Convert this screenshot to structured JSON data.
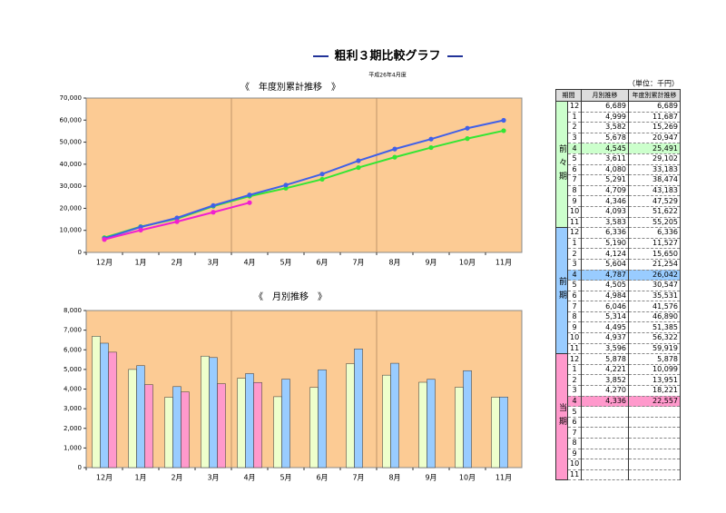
{
  "title": "粗利３期比較グラフ",
  "subtitle": "平成26年4月度",
  "chart_data": [
    {
      "type": "line",
      "title": "《　年度別累計推移　》",
      "categories": [
        "12月",
        "1月",
        "2月",
        "3月",
        "4月",
        "5月",
        "6月",
        "7月",
        "8月",
        "9月",
        "10月",
        "11月"
      ],
      "ylim": [
        0,
        70000
      ],
      "yticks": [
        0,
        {
          "value": 10000,
          "label": "10,000"
        },
        {
          "value": 20000,
          "label": "20,000"
        },
        {
          "value": 30000,
          "label": "30,000"
        },
        {
          "value": 40000,
          "label": "40,000"
        },
        {
          "value": 50000,
          "label": "50,000"
        },
        {
          "value": 60000,
          "label": "60,000"
        },
        {
          "value": 70000,
          "label": "70,000"
        }
      ],
      "series": [
        {
          "color": "#33e633",
          "values": [
            6689,
            11687,
            15269,
            20947,
            25491,
            29102,
            33183,
            38474,
            43183,
            47529,
            51622,
            55205
          ]
        },
        {
          "color": "#4060e8",
          "values": [
            6336,
            11527,
            15650,
            21254,
            26042,
            30547,
            35531,
            41576,
            46890,
            51385,
            56322,
            59919
          ]
        },
        {
          "color": "#f020d0",
          "values": [
            5878,
            10099,
            13951,
            18221,
            22557,
            null,
            null,
            null,
            null,
            null,
            null,
            null
          ]
        }
      ]
    },
    {
      "type": "bar",
      "title": "《　月別推移　》",
      "categories": [
        "12月",
        "1月",
        "2月",
        "3月",
        "4月",
        "5月",
        "6月",
        "7月",
        "8月",
        "9月",
        "10月",
        "11月"
      ],
      "ylim": [
        0,
        8000
      ],
      "yticks": [
        0,
        {
          "value": 1000,
          "label": "1,000"
        },
        {
          "value": 2000,
          "label": "2,000"
        },
        {
          "value": 3000,
          "label": "3,000"
        },
        {
          "value": 4000,
          "label": "4,000"
        },
        {
          "value": 5000,
          "label": "5,000"
        },
        {
          "value": 6000,
          "label": "6,000"
        },
        {
          "value": 7000,
          "label": "7,000"
        },
        {
          "value": 8000,
          "label": "8,000"
        }
      ],
      "series": [
        {
          "color": "#eeffcc",
          "values": [
            6689,
            4999,
            3582,
            5678,
            4545,
            3611,
            4080,
            5291,
            4709,
            4346,
            4093,
            3583
          ]
        },
        {
          "color": "#99ccff",
          "values": [
            6336,
            5190,
            4124,
            5604,
            4787,
            4505,
            4984,
            6046,
            5314,
            4495,
            4937,
            3596
          ]
        },
        {
          "color": "#ff99cc",
          "values": [
            5878,
            4221,
            3852,
            4270,
            4336,
            null,
            null,
            null,
            null,
            null,
            null,
            null
          ]
        }
      ]
    }
  ],
  "table": {
    "unit": "（単位：千円）",
    "header": [
      "期間",
      "月別推移",
      "年度別累計推移"
    ],
    "groups": [
      {
        "label": "前々期",
        "color": "#ccffcc",
        "highlight": 4,
        "rows": [
          [
            "12",
            "6,689",
            "6,689"
          ],
          [
            "1",
            "4,999",
            "11,687"
          ],
          [
            "2",
            "3,582",
            "15,269"
          ],
          [
            "3",
            "5,678",
            "20,947"
          ],
          [
            "4",
            "4,545",
            "25,491"
          ],
          [
            "5",
            "3,611",
            "29,102"
          ],
          [
            "6",
            "4,080",
            "33,183"
          ],
          [
            "7",
            "5,291",
            "38,474"
          ],
          [
            "8",
            "4,709",
            "43,183"
          ],
          [
            "9",
            "4,346",
            "47,529"
          ],
          [
            "10",
            "4,093",
            "51,622"
          ],
          [
            "11",
            "3,583",
            "55,205"
          ]
        ]
      },
      {
        "label": "前期",
        "color": "#99ccff",
        "highlight": 4,
        "rows": [
          [
            "12",
            "6,336",
            "6,336"
          ],
          [
            "1",
            "5,190",
            "11,527"
          ],
          [
            "2",
            "4,124",
            "15,650"
          ],
          [
            "3",
            "5,604",
            "21,254"
          ],
          [
            "4",
            "4,787",
            "26,042"
          ],
          [
            "5",
            "4,505",
            "30,547"
          ],
          [
            "6",
            "4,984",
            "35,531"
          ],
          [
            "7",
            "6,046",
            "41,576"
          ],
          [
            "8",
            "5,314",
            "46,890"
          ],
          [
            "9",
            "4,495",
            "51,385"
          ],
          [
            "10",
            "4,937",
            "56,322"
          ],
          [
            "11",
            "3,596",
            "59,919"
          ]
        ]
      },
      {
        "label": "当期",
        "color": "#ff99cc",
        "highlight": 4,
        "rows": [
          [
            "12",
            "5,878",
            "5,878"
          ],
          [
            "1",
            "4,221",
            "10,099"
          ],
          [
            "2",
            "3,852",
            "13,951"
          ],
          [
            "3",
            "4,270",
            "18,221"
          ],
          [
            "4",
            "4,336",
            "22,557"
          ],
          [
            "5"
          ],
          [
            "6"
          ],
          [
            "7"
          ],
          [
            "8"
          ],
          [
            "9"
          ],
          [
            "10"
          ],
          [
            "11"
          ]
        ]
      }
    ]
  }
}
